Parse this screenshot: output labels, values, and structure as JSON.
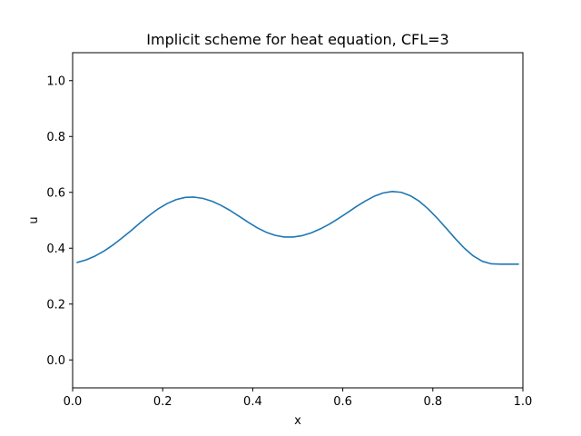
{
  "chart_data": {
    "type": "line",
    "title": "Implicit scheme for heat equation, CFL=3",
    "xlabel": "x",
    "ylabel": "u",
    "xlim": [
      0.0,
      1.0
    ],
    "ylim": [
      -0.1,
      1.1
    ],
    "xticks": [
      0.0,
      0.2,
      0.4,
      0.6,
      0.8,
      1.0
    ],
    "xtick_labels": [
      "0.0",
      "0.2",
      "0.4",
      "0.6",
      "0.8",
      "1.0"
    ],
    "yticks": [
      0.0,
      0.2,
      0.4,
      0.6,
      0.8,
      1.0
    ],
    "ytick_labels": [
      "0.0",
      "0.2",
      "0.4",
      "0.6",
      "0.8",
      "1.0"
    ],
    "grid": false,
    "line_color": "#1f77b4",
    "series": [
      {
        "x": [
          0.01,
          0.03,
          0.05,
          0.07,
          0.09,
          0.11,
          0.13,
          0.15,
          0.17,
          0.19,
          0.21,
          0.23,
          0.25,
          0.27,
          0.29,
          0.31,
          0.33,
          0.35,
          0.37,
          0.39,
          0.41,
          0.43,
          0.45,
          0.47,
          0.49,
          0.51,
          0.53,
          0.55,
          0.57,
          0.59,
          0.61,
          0.63,
          0.65,
          0.67,
          0.69,
          0.71,
          0.73,
          0.75,
          0.77,
          0.79,
          0.81,
          0.83,
          0.85,
          0.87,
          0.89,
          0.91,
          0.93,
          0.95,
          0.97,
          0.99
        ],
        "y": [
          0.349,
          0.358,
          0.372,
          0.39,
          0.412,
          0.437,
          0.463,
          0.491,
          0.517,
          0.541,
          0.56,
          0.574,
          0.582,
          0.583,
          0.578,
          0.568,
          0.553,
          0.535,
          0.514,
          0.493,
          0.473,
          0.457,
          0.446,
          0.44,
          0.44,
          0.445,
          0.455,
          0.469,
          0.486,
          0.506,
          0.527,
          0.549,
          0.569,
          0.586,
          0.598,
          0.603,
          0.6,
          0.588,
          0.568,
          0.54,
          0.507,
          0.471,
          0.434,
          0.4,
          0.372,
          0.353,
          0.344,
          0.343,
          0.343,
          0.343
        ]
      }
    ]
  }
}
